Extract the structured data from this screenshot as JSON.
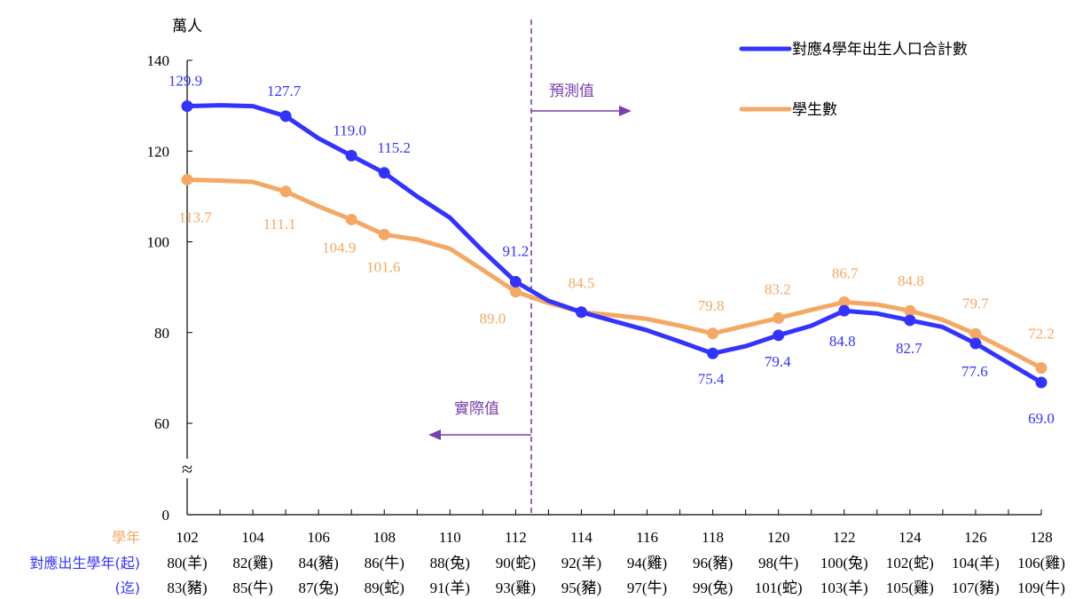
{
  "chart_data": {
    "type": "line",
    "ylabel": "萬人",
    "yticks": [
      0,
      60,
      80,
      100,
      120,
      140
    ],
    "axis_break_symbol": "≈",
    "x": [
      102,
      103,
      104,
      105,
      106,
      107,
      108,
      109,
      110,
      111,
      112,
      113,
      114,
      115,
      116,
      117,
      118,
      119,
      120,
      121,
      122,
      123,
      124,
      125,
      126,
      127,
      128
    ],
    "series": [
      {
        "name": "對應4學年出生人口合計數",
        "color": "#3333ff",
        "values": [
          129.9,
          130.1,
          129.9,
          127.7,
          122.8,
          119.0,
          115.2,
          110.0,
          105.3,
          98.0,
          91.2,
          87.0,
          84.5,
          82.5,
          80.5,
          78.0,
          75.4,
          77.0,
          79.4,
          81.5,
          84.8,
          84.2,
          82.7,
          81.2,
          77.6,
          73.3,
          69.0
        ],
        "markers": [
          102,
          105,
          107,
          108,
          112,
          114,
          118,
          120,
          122,
          124,
          126,
          128
        ],
        "labels": [
          {
            "x": 102,
            "text": "129.9"
          },
          {
            "x": 105,
            "text": "127.7"
          },
          {
            "x": 107,
            "text": "119.0"
          },
          {
            "x": 108,
            "text": "115.2"
          },
          {
            "x": 112,
            "text": "91.2"
          },
          {
            "x": 118,
            "text": "75.4"
          },
          {
            "x": 120,
            "text": "79.4"
          },
          {
            "x": 122,
            "text": "84.8"
          },
          {
            "x": 124,
            "text": "82.7"
          },
          {
            "x": 126,
            "text": "77.6"
          },
          {
            "x": 128,
            "text": "69.0"
          }
        ]
      },
      {
        "name": "學生數",
        "color": "#f5a864",
        "values": [
          113.7,
          113.5,
          113.2,
          111.1,
          107.8,
          104.9,
          101.6,
          100.5,
          98.5,
          93.8,
          89.0,
          86.5,
          84.5,
          83.8,
          83.0,
          81.5,
          79.8,
          81.5,
          83.2,
          85.0,
          86.7,
          86.2,
          84.8,
          82.8,
          79.7,
          76.0,
          72.2
        ],
        "markers": [
          102,
          105,
          107,
          108,
          112,
          114,
          118,
          120,
          122,
          124,
          126,
          128
        ],
        "labels": [
          {
            "x": 102,
            "text": "113.7"
          },
          {
            "x": 105,
            "text": "111.1"
          },
          {
            "x": 107,
            "text": "104.9"
          },
          {
            "x": 108,
            "text": "101.6"
          },
          {
            "x": 112,
            "text": "89.0"
          },
          {
            "x": 114,
            "text": "84.5"
          },
          {
            "x": 118,
            "text": "79.8"
          },
          {
            "x": 120,
            "text": "83.2"
          },
          {
            "x": 122,
            "text": "86.7"
          },
          {
            "x": 124,
            "text": "84.8"
          },
          {
            "x": 126,
            "text": "79.7"
          },
          {
            "x": 128,
            "text": "72.2"
          }
        ]
      }
    ],
    "divider": {
      "forecast_label": "預測值",
      "actual_label": "實際值",
      "color": "#7a3fb0"
    },
    "legend": "top-right",
    "x_table": {
      "row_labels": [
        "學年",
        "對應出生學年(起)",
        "(迄)"
      ],
      "row_label_colors": [
        "#f5a864",
        "#3333ff",
        "#3333ff"
      ],
      "columns": [
        {
          "year": "102",
          "start": "80(羊)",
          "end": "83(豬)"
        },
        {
          "year": "104",
          "start": "82(雞)",
          "end": "85(牛)"
        },
        {
          "year": "106",
          "start": "84(豬)",
          "end": "87(兔)"
        },
        {
          "year": "108",
          "start": "86(牛)",
          "end": "89(蛇)"
        },
        {
          "year": "110",
          "start": "88(兔)",
          "end": "91(羊)"
        },
        {
          "year": "112",
          "start": "90(蛇)",
          "end": "93(雞)"
        },
        {
          "year": "114",
          "start": "92(羊)",
          "end": "95(豬)"
        },
        {
          "year": "116",
          "start": "94(雞)",
          "end": "97(牛)"
        },
        {
          "year": "118",
          "start": "96(豬)",
          "end": "99(兔)"
        },
        {
          "year": "120",
          "start": "98(牛)",
          "end": "101(蛇)"
        },
        {
          "year": "122",
          "start": "100(兔)",
          "end": "103(羊)"
        },
        {
          "year": "124",
          "start": "102(蛇)",
          "end": "105(雞)"
        },
        {
          "year": "126",
          "start": "104(羊)",
          "end": "107(豬)"
        },
        {
          "year": "128",
          "start": "106(雞)",
          "end": "109(牛)"
        }
      ]
    }
  }
}
